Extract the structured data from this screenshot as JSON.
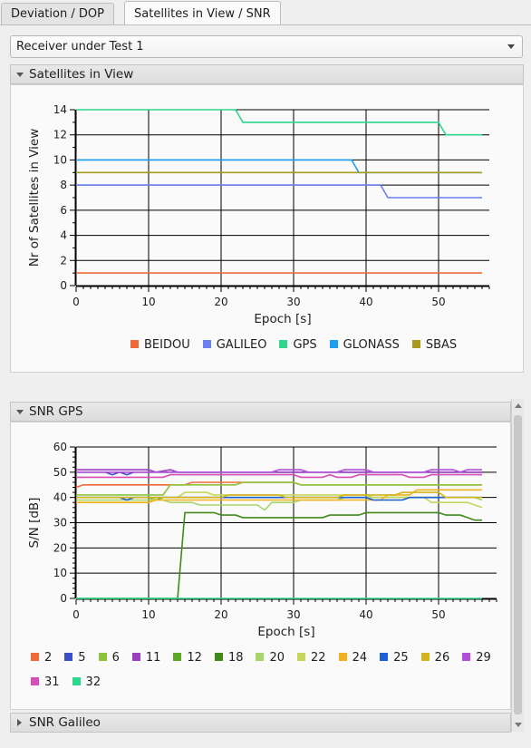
{
  "tabs": [
    {
      "label": "Deviation / DOP",
      "active": false
    },
    {
      "label": "Satellites in View / SNR",
      "active": true
    }
  ],
  "receiver_select": {
    "value": "Receiver under Test 1"
  },
  "sections": {
    "satellites": "Satellites in View",
    "snr_gps": "SNR GPS",
    "snr_galileo": "SNR Galileo"
  },
  "chart_data": [
    {
      "type": "line",
      "title": "",
      "xlabel": "Epoch [s]",
      "ylabel": "Nr of Satellites in View",
      "xlim": [
        0,
        57
      ],
      "ylim": [
        0,
        14
      ],
      "xticks": [
        0,
        10,
        20,
        30,
        40,
        50
      ],
      "yticks": [
        0,
        2,
        4,
        6,
        8,
        10,
        12,
        14
      ],
      "grid": true,
      "legend_position": "bottom",
      "series": [
        {
          "name": "BEIDOU",
          "color": "#ef6a3a",
          "points": [
            [
              0,
              1
            ],
            [
              56,
              1
            ]
          ]
        },
        {
          "name": "GALILEO",
          "color": "#6b7ff0",
          "points": [
            [
              0,
              8
            ],
            [
              42,
              8
            ],
            [
              43,
              7
            ],
            [
              56,
              7
            ]
          ]
        },
        {
          "name": "GPS",
          "color": "#2ed68e",
          "points": [
            [
              0,
              14
            ],
            [
              22,
              14
            ],
            [
              23,
              13
            ],
            [
              50,
              13
            ],
            [
              51,
              12
            ],
            [
              56,
              12
            ]
          ]
        },
        {
          "name": "GLONASS",
          "color": "#1e9ef0",
          "points": [
            [
              0,
              10
            ],
            [
              38,
              10
            ],
            [
              39,
              9
            ],
            [
              56,
              9
            ]
          ]
        },
        {
          "name": "SBAS",
          "color": "#a89a1a",
          "points": [
            [
              0,
              9
            ],
            [
              56,
              9
            ]
          ]
        }
      ]
    },
    {
      "type": "line",
      "title": "",
      "xlabel": "Epoch [s]",
      "ylabel": "S/N [dB]",
      "xlim": [
        0,
        58
      ],
      "ylim": [
        0,
        60
      ],
      "xticks": [
        0,
        10,
        20,
        30,
        40,
        50
      ],
      "yticks": [
        0,
        10,
        20,
        30,
        40,
        50,
        60
      ],
      "grid": true,
      "legend_position": "bottom",
      "series": [
        {
          "name": "2",
          "color": "#ef6a3a",
          "points": [
            [
              0,
              44
            ],
            [
              1,
              45
            ],
            [
              15,
              45
            ],
            [
              16,
              46
            ],
            [
              30,
              46
            ],
            [
              31,
              45
            ],
            [
              56,
              45
            ]
          ]
        },
        {
          "name": "5",
          "color": "#3b4fc8",
          "points": [
            [
              0,
              50
            ],
            [
              4,
              50
            ],
            [
              5,
              49
            ],
            [
              6,
              50
            ],
            [
              7,
              49
            ],
            [
              8,
              50
            ],
            [
              56,
              50
            ]
          ]
        },
        {
          "name": "6",
          "color": "#8cc43a",
          "points": [
            [
              0,
              41
            ],
            [
              12,
              41
            ],
            [
              13,
              45
            ],
            [
              22,
              45
            ],
            [
              23,
              46
            ],
            [
              30,
              46
            ],
            [
              31,
              45
            ],
            [
              56,
              45
            ]
          ]
        },
        {
          "name": "11",
          "color": "#9a3fc0",
          "points": [
            [
              0,
              51
            ],
            [
              10,
              51
            ],
            [
              11,
              50
            ],
            [
              13,
              51
            ],
            [
              14,
              50
            ],
            [
              56,
              50
            ]
          ]
        },
        {
          "name": "12",
          "color": "#5aaa28",
          "points": [
            [
              0,
              40
            ],
            [
              10,
              40
            ],
            [
              11,
              39
            ],
            [
              12,
              40
            ],
            [
              56,
              40
            ]
          ]
        },
        {
          "name": "18",
          "color": "#3f8a18",
          "points": [
            [
              0,
              0
            ],
            [
              14,
              0
            ],
            [
              15,
              34
            ],
            [
              19,
              34
            ],
            [
              20,
              33
            ],
            [
              22,
              33
            ],
            [
              23,
              32
            ],
            [
              34,
              32
            ],
            [
              35,
              33
            ],
            [
              39,
              33
            ],
            [
              40,
              34
            ],
            [
              50,
              34
            ],
            [
              51,
              33
            ],
            [
              53,
              33
            ],
            [
              54,
              32
            ],
            [
              55,
              31
            ],
            [
              56,
              31
            ]
          ]
        },
        {
          "name": "20",
          "color": "#a6d66a",
          "points": [
            [
              0,
              39
            ],
            [
              12,
              39
            ],
            [
              13,
              38
            ],
            [
              16,
              38
            ],
            [
              17,
              37
            ],
            [
              25,
              37
            ],
            [
              26,
              35
            ],
            [
              27,
              38
            ],
            [
              30,
              38
            ],
            [
              31,
              39
            ],
            [
              36,
              39
            ],
            [
              37,
              40
            ],
            [
              55,
              40
            ],
            [
              56,
              39
            ]
          ]
        },
        {
          "name": "22",
          "color": "#c6d65a",
          "points": [
            [
              0,
              38
            ],
            [
              10,
              38
            ],
            [
              11,
              40
            ],
            [
              14,
              40
            ],
            [
              15,
              42
            ],
            [
              18,
              42
            ],
            [
              19,
              41
            ],
            [
              40,
              41
            ],
            [
              41,
              40
            ],
            [
              48,
              40
            ],
            [
              49,
              38
            ],
            [
              54,
              38
            ],
            [
              56,
              36
            ]
          ]
        },
        {
          "name": "24",
          "color": "#f0b21e",
          "points": [
            [
              0,
              38
            ],
            [
              10,
              38
            ],
            [
              11,
              39
            ],
            [
              42,
              39
            ],
            [
              43,
              41
            ],
            [
              46,
              41
            ],
            [
              47,
              43
            ],
            [
              56,
              43
            ]
          ]
        },
        {
          "name": "25",
          "color": "#1e5fd6",
          "points": [
            [
              0,
              40
            ],
            [
              6,
              40
            ],
            [
              7,
              39
            ],
            [
              8,
              40
            ],
            [
              40,
              40
            ],
            [
              41,
              39
            ],
            [
              45,
              39
            ],
            [
              46,
              40
            ],
            [
              56,
              40
            ]
          ]
        },
        {
          "name": "26",
          "color": "#d2b41e",
          "points": [
            [
              0,
              40
            ],
            [
              20,
              40
            ],
            [
              21,
              41
            ],
            [
              28,
              41
            ],
            [
              29,
              40
            ],
            [
              36,
              40
            ],
            [
              37,
              41
            ],
            [
              44,
              41
            ],
            [
              45,
              42
            ],
            [
              50,
              42
            ],
            [
              51,
              40
            ],
            [
              56,
              40
            ]
          ]
        },
        {
          "name": "29",
          "color": "#b04fd6",
          "points": [
            [
              0,
              50
            ],
            [
              27,
              50
            ],
            [
              28,
              51
            ],
            [
              31,
              51
            ],
            [
              32,
              50
            ],
            [
              36,
              50
            ],
            [
              37,
              51
            ],
            [
              40,
              51
            ],
            [
              41,
              50
            ],
            [
              48,
              50
            ],
            [
              49,
              51
            ],
            [
              52,
              51
            ],
            [
              53,
              50
            ],
            [
              54,
              51
            ],
            [
              56,
              51
            ]
          ]
        },
        {
          "name": "31",
          "color": "#d64fb4",
          "points": [
            [
              0,
              48
            ],
            [
              12,
              48
            ],
            [
              13,
              49
            ],
            [
              30,
              49
            ],
            [
              31,
              48
            ],
            [
              34,
              48
            ],
            [
              35,
              49
            ],
            [
              36,
              48
            ],
            [
              38,
              48
            ],
            [
              39,
              49
            ],
            [
              45,
              49
            ],
            [
              46,
              48
            ],
            [
              48,
              48
            ],
            [
              49,
              49
            ],
            [
              56,
              49
            ]
          ]
        },
        {
          "name": "32",
          "color": "#2ed68e",
          "points": [
            [
              0,
              0
            ],
            [
              56,
              0
            ]
          ]
        }
      ]
    }
  ],
  "colors": {
    "grid": "#000000",
    "background": "#fafafa"
  },
  "icons": {
    "collapse": "triangle-down-icon",
    "expand": "triangle-right-icon",
    "dropdown": "chevron-down-icon"
  }
}
